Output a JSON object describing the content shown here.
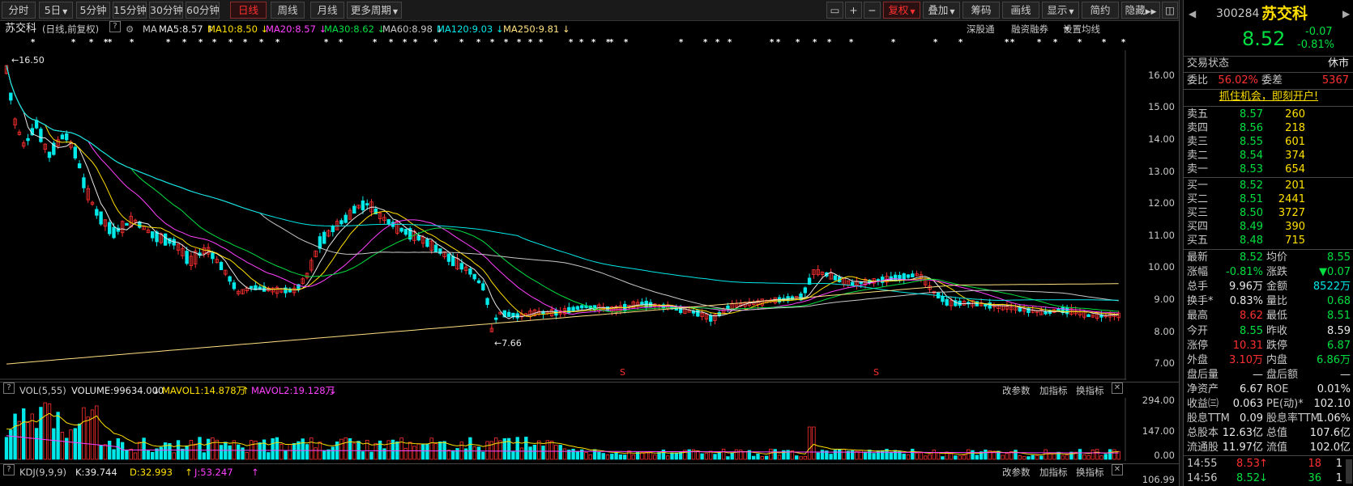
{
  "toolbar": {
    "periods": [
      "分时",
      "5日",
      "5分钟",
      "15分钟",
      "30分钟",
      "60分钟",
      "日线",
      "周线",
      "月线",
      "更多周期"
    ],
    "active_period": "日线",
    "right_buttons": [
      "复权",
      "叠加",
      "筹码",
      "画线",
      "显示",
      "简约",
      "隐藏"
    ],
    "icons": [
      "window-icon",
      "plus-icon",
      "minus-icon"
    ]
  },
  "main": {
    "stock_name": "苏交科",
    "mode": "(日线,前复权)",
    "ma_label": "MA",
    "ma": [
      {
        "label": "MA5:8.57",
        "arrow": "↑",
        "color": "#e8e8e8"
      },
      {
        "label": "MA10:8.50",
        "arrow": "↓",
        "color": "#ffe000"
      },
      {
        "label": "MA20:8.57",
        "arrow": "↓",
        "color": "#ff40ff"
      },
      {
        "label": "MA30:8.62",
        "arrow": "↓",
        "color": "#00e040"
      },
      {
        "label": "MA60:8.98",
        "arrow": "↓",
        "color": "#c8c8c8"
      },
      {
        "label": "MA120:9.03",
        "arrow": "↓",
        "color": "#00e8e8"
      },
      {
        "label": "MA250:9.81",
        "arrow": "↓",
        "color": "#ffe080"
      }
    ],
    "links": [
      "深股通",
      "融资融券",
      "设置均线"
    ],
    "high_marker": "16.50",
    "low_marker": "7.66",
    "y_ticks": [
      "16.00",
      "15.00",
      "14.00",
      "13.00",
      "12.00",
      "11.00",
      "10.00",
      "9.00",
      "8.00",
      "7.00"
    ],
    "s_marker": "S"
  },
  "volume": {
    "label": "VOL(5,55)",
    "volume": "VOLUME:99634.000",
    "mavol1": "MAVOL1:14.878万",
    "mavol2": "MAVOL2:19.128万",
    "ticks": [
      "294.00",
      "147.00",
      "0.00"
    ],
    "buttons": [
      "改参数",
      "加指标",
      "换指标"
    ]
  },
  "kdj": {
    "label": "KDJ(9,9,9)",
    "k": "K:39.744",
    "d": "D:32.993",
    "j": "J:53.247",
    "tick": "106.99",
    "buttons": [
      "改参数",
      "加指标",
      "换指标"
    ]
  },
  "panel": {
    "code": "300284",
    "name": "苏交科",
    "price": "8.52",
    "change": "-0.07",
    "change_pct": "-0.81%",
    "status_label": "交易状态",
    "status_value": "休市",
    "wb_label": "委比",
    "wb_value": "56.02%",
    "wc_label": "委差",
    "wc_value": "5367",
    "promo": "抓住机会，即刻开户!",
    "asks": [
      {
        "label": "卖五",
        "price": "8.57",
        "vol": "260"
      },
      {
        "label": "卖四",
        "price": "8.56",
        "vol": "218"
      },
      {
        "label": "卖三",
        "price": "8.55",
        "vol": "601"
      },
      {
        "label": "卖二",
        "price": "8.54",
        "vol": "374"
      },
      {
        "label": "卖一",
        "price": "8.53",
        "vol": "654"
      }
    ],
    "bids": [
      {
        "label": "买一",
        "price": "8.52",
        "vol": "201"
      },
      {
        "label": "买二",
        "price": "8.51",
        "vol": "2441"
      },
      {
        "label": "买三",
        "price": "8.50",
        "vol": "3727"
      },
      {
        "label": "买四",
        "price": "8.49",
        "vol": "390"
      },
      {
        "label": "买五",
        "price": "8.48",
        "vol": "715"
      }
    ],
    "stats": [
      {
        "l1": "最新",
        "v1": "8.52",
        "c1": "green",
        "l2": "均价",
        "v2": "8.55",
        "c2": "green"
      },
      {
        "l1": "涨幅",
        "v1": "-0.81%",
        "c1": "green",
        "l2": "涨跌",
        "v2": "▼0.07",
        "c2": "green"
      },
      {
        "l1": "总手",
        "v1": "9.96万",
        "c1": "white",
        "l2": "金额",
        "v2": "8522万",
        "c2": "cyan"
      },
      {
        "l1": "换手*",
        "v1": "0.83%",
        "c1": "white",
        "l2": "量比",
        "v2": "0.68",
        "c2": "green"
      },
      {
        "l1": "最高",
        "v1": "8.62",
        "c1": "red",
        "l2": "最低",
        "v2": "8.51",
        "c2": "green"
      },
      {
        "l1": "今开",
        "v1": "8.55",
        "c1": "green",
        "l2": "昨收",
        "v2": "8.59",
        "c2": "white"
      },
      {
        "l1": "涨停",
        "v1": "10.31",
        "c1": "red",
        "l2": "跌停",
        "v2": "6.87",
        "c2": "green"
      },
      {
        "l1": "外盘",
        "v1": "3.10万",
        "c1": "red",
        "l2": "内盘",
        "v2": "6.86万",
        "c2": "green"
      },
      {
        "l1": "盘后量",
        "v1": "—",
        "c1": "white",
        "l2": "盘后额",
        "v2": "—",
        "c2": "white"
      },
      {
        "l1": "净资产",
        "v1": "6.67",
        "c1": "white",
        "l2": "ROE",
        "v2": "0.01%",
        "c2": "white"
      },
      {
        "l1": "收益㈢",
        "v1": "0.063",
        "c1": "white",
        "l2": "PE(动)*",
        "v2": "102.10",
        "c2": "white"
      },
      {
        "l1": "股息TTM",
        "v1": "0.09",
        "c1": "white",
        "l2": "股息率TTM",
        "v2": "1.06%",
        "c2": "white"
      },
      {
        "l1": "总股本",
        "v1": "12.63亿",
        "c1": "white",
        "l2": "总值",
        "v2": "107.6亿",
        "c2": "white"
      },
      {
        "l1": "流通股",
        "v1": "11.97亿",
        "c1": "white",
        "l2": "流值",
        "v2": "102.0亿",
        "c2": "white"
      }
    ],
    "trades": [
      {
        "time": "14:55",
        "price": "8.53",
        "dir": "↑",
        "vol": "18",
        "n": "1",
        "pc": "red"
      },
      {
        "time": "14:56",
        "price": "8.52",
        "dir": "↓",
        "vol": "36",
        "n": "1",
        "pc": "green"
      }
    ]
  },
  "colors": {
    "up": "#ff3030",
    "down": "#00e8e8",
    "bg": "#000000"
  }
}
